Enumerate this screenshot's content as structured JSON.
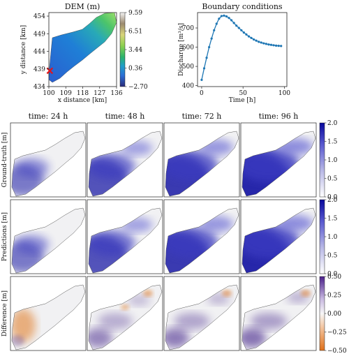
{
  "chart_data": [
    {
      "type": "heatmap",
      "title": "DEM (m)",
      "xlabel": "x distance [km]",
      "ylabel": "y distance [km]",
      "xticks": [
        "100",
        "109",
        "118",
        "127",
        "136"
      ],
      "yticks": [
        "454",
        "449",
        "444",
        "439",
        "434"
      ],
      "xlim": [
        100,
        136
      ],
      "ylim": [
        434,
        455
      ],
      "colorbar_ticks": [
        "9.59",
        "6.51",
        "3.44",
        "0.36",
        "−2.70"
      ],
      "colorbar_range": [
        -2.7,
        9.59
      ],
      "marker": {
        "x": 100.5,
        "y": 438.5,
        "color": "#e3141b"
      }
    },
    {
      "type": "line",
      "title": "Boundary conditions",
      "xlabel": "Time [h]",
      "ylabel": "Discharge [m³/s]",
      "xticks": [
        "0",
        "50",
        "100"
      ],
      "yticks": [
        "400",
        "500",
        "600",
        "700"
      ],
      "xlim": [
        -5,
        103
      ],
      "ylim": [
        395,
        780
      ],
      "color": "#1f77b4",
      "series": [
        {
          "x": [
            0,
            3,
            6,
            9,
            12,
            15,
            18,
            21,
            24,
            27,
            30,
            33,
            36,
            39,
            42,
            45,
            48,
            51,
            54,
            57,
            60,
            63,
            66,
            69,
            72,
            75,
            78,
            81,
            84,
            87,
            90,
            93,
            96
          ],
          "values": [
            430,
            490,
            545,
            600,
            645,
            688,
            722,
            748,
            762,
            764,
            760,
            752,
            740,
            726,
            712,
            700,
            688,
            676,
            666,
            656,
            648,
            640,
            634,
            628,
            624,
            620,
            617,
            614,
            612,
            610,
            608,
            607,
            606
          ]
        }
      ]
    },
    {
      "type": "heatmap",
      "columns": [
        "time: 24 h",
        "time: 48 h",
        "time: 72 h",
        "time: 96 h"
      ],
      "rows": [
        {
          "label": "Ground-truth [m]",
          "colorbar": "blue",
          "ticks": [
            "2.0",
            "1.5",
            "1.0",
            "0.5",
            "0.0"
          ],
          "range": [
            0,
            2.0
          ],
          "levels": [
            0.35,
            0.65,
            0.85,
            1.0
          ]
        },
        {
          "label": "Predictions [m]",
          "colorbar": "blue",
          "ticks": [
            "2.0",
            "1.5",
            "1.0",
            "0.5",
            "0.0"
          ],
          "range": [
            0,
            2.0
          ],
          "levels": [
            0.35,
            0.65,
            0.85,
            1.0
          ]
        },
        {
          "label": "Difference [m]",
          "colorbar": "diverging",
          "ticks": [
            "0.50",
            "0.25",
            "0.00",
            "−0.25",
            "−0.50"
          ],
          "range": [
            -0.5,
            0.5
          ],
          "levels": [
            0.3,
            0.45,
            0.6,
            0.7
          ]
        }
      ],
      "colors": {
        "blue_low": "#f4f4f8",
        "blue_high": "#1a1aa6",
        "pos": "#4a2a8e",
        "neg": "#e0771c"
      }
    }
  ]
}
